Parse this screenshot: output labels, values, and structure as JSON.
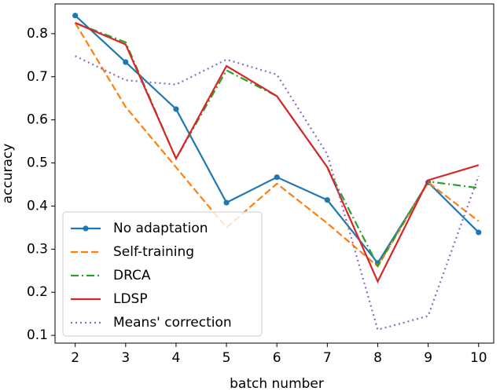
{
  "chart_data": {
    "type": "line",
    "xlabel": "batch number",
    "ylabel": "accuracy",
    "x": [
      2,
      3,
      4,
      5,
      6,
      7,
      8,
      9,
      10
    ],
    "xlim": [
      1.6,
      10.3
    ],
    "xticks": [
      2,
      3,
      4,
      5,
      6,
      7,
      8,
      9,
      10
    ],
    "ylim": [
      0.082,
      0.869
    ],
    "yticks": [
      0.1,
      0.2,
      0.3,
      0.4,
      0.5,
      0.6,
      0.7,
      0.8
    ],
    "legend": "lower left",
    "series": [
      {
        "name": "No adaptation",
        "color": "#1f77b4",
        "linestyle": "solid",
        "marker": "circle",
        "values": [
          0.842,
          0.734,
          0.625,
          0.408,
          0.467,
          0.414,
          0.268,
          0.455,
          0.339
        ]
      },
      {
        "name": "Self-training",
        "color": "#ff7f0e",
        "linestyle": "dashed",
        "marker": "none",
        "values": [
          0.825,
          0.63,
          0.49,
          0.35,
          0.452,
          0.36,
          0.26,
          0.455,
          0.365
        ]
      },
      {
        "name": "DRCA",
        "color": "#2ca02c",
        "linestyle": "dashdot",
        "marker": "none",
        "values": [
          0.825,
          0.78,
          0.51,
          0.715,
          0.655,
          0.49,
          0.262,
          0.457,
          0.442
        ]
      },
      {
        "name": "LDSP",
        "color": "#d62728",
        "linestyle": "solid",
        "marker": "none",
        "values": [
          0.825,
          0.775,
          0.51,
          0.725,
          0.655,
          0.49,
          0.225,
          0.46,
          0.495
        ]
      },
      {
        "name": "Means' correction",
        "color": "#9467bd",
        "linestyle": "dotted",
        "marker": "none",
        "values": [
          0.748,
          0.692,
          0.682,
          0.74,
          0.705,
          0.52,
          0.113,
          0.145,
          0.47
        ]
      }
    ]
  }
}
